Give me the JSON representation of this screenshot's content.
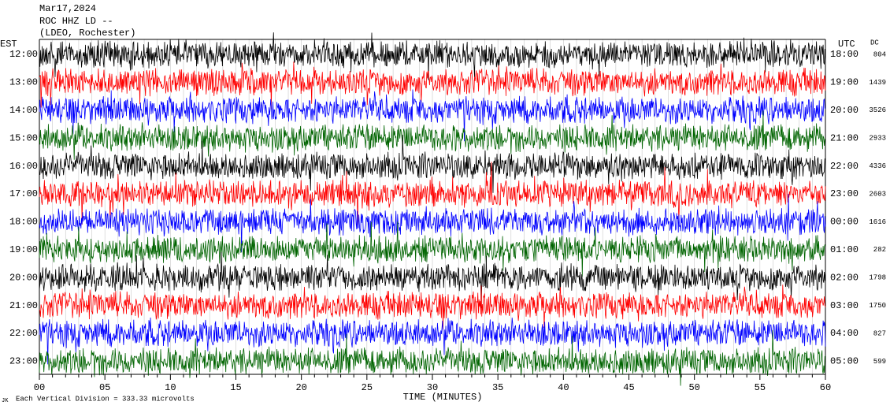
{
  "header": {
    "date": "Mar17,2024",
    "station": "ROC HHZ LD --",
    "location": "(LDEO, Rochester)"
  },
  "left_axis": {
    "title": "EST",
    "labels": [
      "12:00",
      "13:00",
      "14:00",
      "15:00",
      "16:00",
      "17:00",
      "18:00",
      "19:00",
      "20:00",
      "21:00",
      "22:00",
      "23:00"
    ]
  },
  "right_axis": {
    "title": "UTC",
    "labels": [
      "18:00",
      "19:00",
      "20:00",
      "21:00",
      "22:00",
      "23:00",
      "00:00",
      "01:00",
      "02:00",
      "03:00",
      "04:00",
      "05:00"
    ],
    "dc_title": "DC",
    "dc_values": [
      "804",
      "1439",
      "3526",
      "2933",
      "4336",
      "2603",
      "1616",
      "282",
      "1798",
      "1750",
      "827",
      "599"
    ]
  },
  "x_axis": {
    "title": "TIME (MINUTES)",
    "ticks": [
      "00",
      "05",
      "10",
      "15",
      "20",
      "25",
      "30",
      "35",
      "40",
      "45",
      "50",
      "55",
      "60"
    ]
  },
  "footer": {
    "corner": "JK",
    "scale_note": "Each Vertical Division =  333.33 microvolts"
  },
  "trace_colors": [
    "#000000",
    "#ff0000",
    "#0000ff",
    "#006400"
  ]
}
